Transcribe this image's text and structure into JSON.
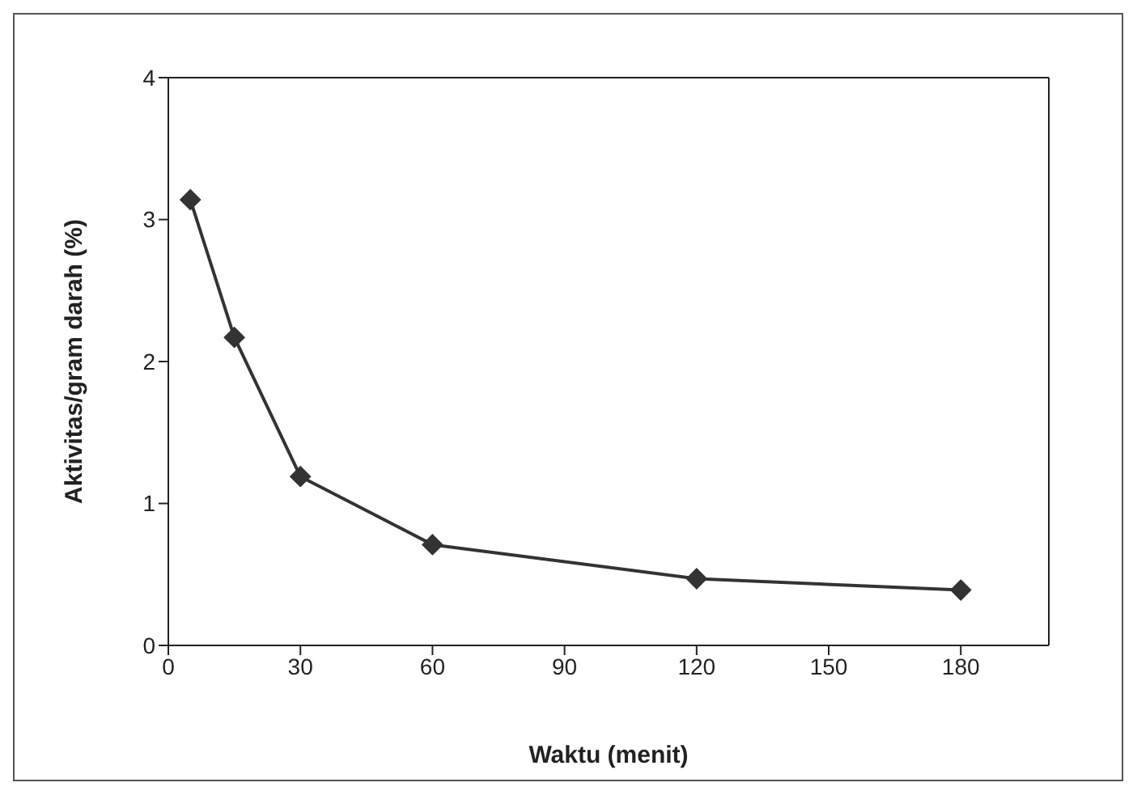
{
  "chart_data": {
    "type": "line",
    "xlabel": "Waktu (menit)",
    "ylabel": "Aktivitas/gram darah (%)",
    "x": [
      5,
      15,
      30,
      60,
      120,
      180
    ],
    "series": [
      {
        "color": "#333333",
        "values": [
          3.14,
          2.17,
          1.19,
          0.71,
          0.47,
          0.39
        ]
      }
    ],
    "xlim": [
      0,
      200
    ],
    "xticks": [
      0,
      30,
      60,
      90,
      120,
      150,
      180
    ],
    "ylim": [
      0,
      4
    ],
    "yticks": [
      0,
      1,
      2,
      3,
      4
    ],
    "grid": false,
    "legend": false,
    "marker": "diamond",
    "line_style": "solid"
  }
}
